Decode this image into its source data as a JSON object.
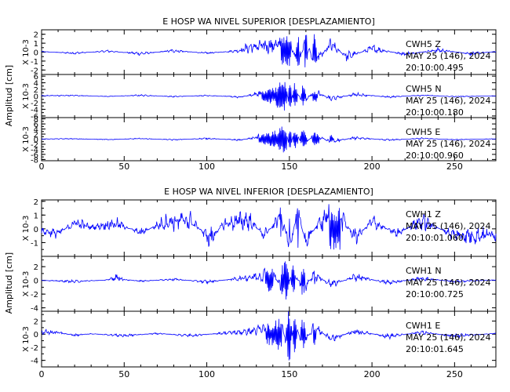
{
  "colors": {
    "trace": "#0000ff",
    "axis": "#000000",
    "text": "#000000",
    "background": "#ffffff"
  },
  "chart_data": [
    {
      "type": "line",
      "title": "E HOSP WA NIVEL SUPERIOR [DESPLAZAMIENTO]",
      "ylabel": "Amplitud [cm]",
      "xlim": [
        0,
        275
      ],
      "x_ticks": [
        0,
        50,
        100,
        150,
        200,
        250
      ],
      "grid": false,
      "panels": [
        {
          "scale_label": "X 10-3",
          "ylim": [
            -2.5,
            2.5
          ],
          "y_ticks": [
            -2,
            -1,
            0,
            1,
            2
          ],
          "channel": "CWH5 Z",
          "date": "MAY 25 (146), 2024",
          "time": "20:10:00.495",
          "x": [
            0,
            20,
            40,
            60,
            80,
            100,
            120,
            125,
            135,
            145,
            150,
            155,
            160,
            165,
            175,
            185,
            200,
            220,
            240,
            260,
            275
          ],
          "y": [
            0.1,
            -0.2,
            0.2,
            -0.3,
            0.3,
            -0.2,
            0.3,
            0.9,
            1.2,
            1.5,
            2.2,
            -2.4,
            2.3,
            -2.1,
            1.4,
            -0.9,
            0.7,
            -0.4,
            0.4,
            -0.3,
            0.1
          ]
        },
        {
          "scale_label": "X 10-3",
          "ylim": [
            -6.5,
            6.5
          ],
          "y_ticks": [
            -6,
            -4,
            -2,
            0,
            2,
            4,
            6
          ],
          "channel": "CWH5 N",
          "date": "MAY 25 (146), 2024",
          "time": "20:10:00.180",
          "x": [
            0,
            20,
            40,
            60,
            80,
            100,
            120,
            130,
            140,
            148,
            150,
            153,
            158,
            165,
            175,
            190,
            210,
            230,
            250,
            275
          ],
          "y": [
            0.2,
            0.3,
            -0.2,
            0.4,
            -0.3,
            0.3,
            -0.5,
            1.0,
            2.5,
            5.5,
            -6.0,
            4.8,
            -3.5,
            2.3,
            -1.4,
            0.9,
            -0.5,
            0.4,
            -0.3,
            0.1
          ]
        },
        {
          "scale_label": "X 10-3",
          "ylim": [
            -8.5,
            8.5
          ],
          "y_ticks": [
            -8,
            -6,
            -4,
            -2,
            0,
            2,
            4,
            6,
            8
          ],
          "channel": "CWH5 E",
          "date": "MAY 25 (146), 2024",
          "time": "20:10:00.960",
          "x": [
            0,
            20,
            40,
            60,
            80,
            100,
            120,
            130,
            140,
            148,
            150,
            153,
            158,
            165,
            175,
            190,
            210,
            230,
            250,
            275
          ],
          "y": [
            0.1,
            0.3,
            -0.3,
            0.4,
            -0.4,
            0.5,
            -0.6,
            1.2,
            3.0,
            6.5,
            -7.5,
            6.0,
            -4.5,
            3.0,
            -1.8,
            1.0,
            -0.6,
            0.5,
            -0.3,
            0.2
          ]
        }
      ]
    },
    {
      "type": "line",
      "title": "E HOSP WA NIVEL INFERIOR [DESPLAZAMIENTO]",
      "ylabel": "Amplitud [cm]",
      "xlim": [
        0,
        275
      ],
      "x_ticks": [
        0,
        50,
        100,
        150,
        200,
        250
      ],
      "grid": false,
      "panels": [
        {
          "scale_label": "X 10-3",
          "ylim": [
            -2,
            2.1
          ],
          "y_ticks": [
            -1,
            0,
            1,
            2
          ],
          "channel": "CWH1 Z",
          "date": "MAY 25 (146), 2024",
          "time": "20:10:01.060",
          "x": [
            0,
            10,
            20,
            30,
            45,
            60,
            75,
            90,
            102,
            110,
            125,
            135,
            145,
            150,
            155,
            160,
            170,
            180,
            190,
            200,
            215,
            230,
            250,
            260,
            275
          ],
          "y": [
            -0.3,
            -0.6,
            0.8,
            0.2,
            0.7,
            -0.5,
            0.9,
            1.1,
            -1.3,
            0.6,
            1.2,
            -0.8,
            1.6,
            -1.9,
            1.7,
            -1.5,
            1.3,
            1.8,
            -1.1,
            0.9,
            -0.6,
            1.0,
            -0.8,
            -0.9,
            -0.7
          ]
        },
        {
          "scale_label": "X 10-3",
          "ylim": [
            -4.5,
            3.5
          ],
          "y_ticks": [
            -4,
            -2,
            0,
            2
          ],
          "channel": "CWH1 N",
          "date": "MAY 25 (146), 2024",
          "time": "20:10:00.725",
          "x": [
            0,
            20,
            40,
            45,
            50,
            60,
            80,
            100,
            120,
            130,
            140,
            148,
            152,
            158,
            165,
            175,
            190,
            210,
            230,
            250,
            275
          ],
          "y": [
            0,
            -0.3,
            0.1,
            0.9,
            0.2,
            -0.2,
            0.3,
            -0.4,
            0.5,
            1.0,
            1.9,
            -4.1,
            2.9,
            -2.4,
            1.6,
            -1.1,
            0.9,
            -0.6,
            0.5,
            -0.3,
            0.1
          ]
        },
        {
          "scale_label": "X 10-3",
          "ylim": [
            -5,
            3.5
          ],
          "y_ticks": [
            -4,
            -2,
            0,
            2
          ],
          "channel": "CWH1 E",
          "date": "MAY 25 (146), 2024",
          "time": "20:10:01.645",
          "x": [
            0,
            10,
            20,
            30,
            50,
            70,
            90,
            110,
            125,
            135,
            145,
            150,
            153,
            158,
            165,
            175,
            190,
            210,
            230,
            250,
            275
          ],
          "y": [
            0.6,
            0.4,
            -0.3,
            0.1,
            -0.4,
            0.2,
            -0.4,
            0.3,
            0.7,
            1.4,
            2.6,
            -4.8,
            3.0,
            -2.6,
            1.8,
            -1.2,
            0.8,
            -0.6,
            0.5,
            -0.5,
            0.2
          ]
        }
      ]
    }
  ]
}
